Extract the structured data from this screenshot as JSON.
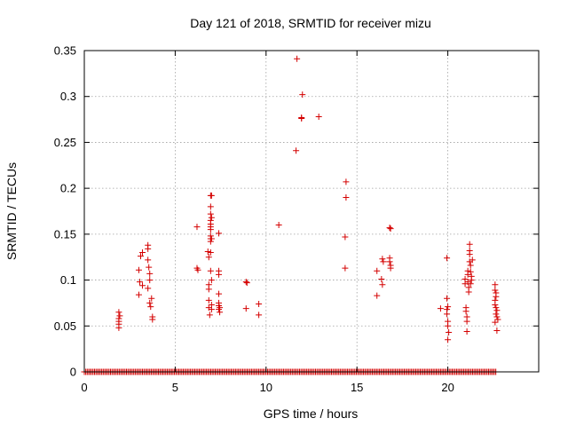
{
  "chart_data": {
    "type": "scatter",
    "title": "Day 121 of 2018, SRMTID for receiver mizu",
    "xlabel": "GPS time / hours",
    "ylabel": "SRMTID / TECUs",
    "xlim": [
      0,
      25
    ],
    "ylim": [
      0,
      0.35
    ],
    "grid": true,
    "marker": "plus",
    "color": "#d40000",
    "x_ticks": [
      0,
      5,
      10,
      15,
      20
    ],
    "x_tick_labels": [
      "0",
      "5",
      "10",
      "15",
      "20"
    ],
    "y_ticks": [
      0,
      0.05,
      0.1,
      0.15,
      0.2,
      0.25,
      0.3,
      0.35
    ],
    "y_tick_labels": [
      "0",
      "0.05",
      "0.1",
      "0.15",
      "0.2",
      "0.25",
      "0.3",
      "0.35"
    ],
    "baseline_zero_range": [
      0,
      22.7
    ],
    "baseline_zero_step": 0.08,
    "points": [
      [
        1.9,
        0.065
      ],
      [
        1.9,
        0.058
      ],
      [
        1.9,
        0.055
      ],
      [
        1.9,
        0.052
      ],
      [
        1.9,
        0.048
      ],
      [
        1.95,
        0.061
      ],
      [
        3.0,
        0.111
      ],
      [
        3.0,
        0.084
      ],
      [
        3.05,
        0.098
      ],
      [
        3.1,
        0.126
      ],
      [
        3.2,
        0.13
      ],
      [
        3.2,
        0.094
      ],
      [
        3.5,
        0.138
      ],
      [
        3.5,
        0.134
      ],
      [
        3.5,
        0.122
      ],
      [
        3.55,
        0.114
      ],
      [
        3.5,
        0.091
      ],
      [
        3.6,
        0.107
      ],
      [
        3.6,
        0.1
      ],
      [
        3.6,
        0.075
      ],
      [
        3.65,
        0.071
      ],
      [
        3.7,
        0.08
      ],
      [
        3.75,
        0.06
      ],
      [
        3.75,
        0.057
      ],
      [
        6.2,
        0.158
      ],
      [
        6.2,
        0.113
      ],
      [
        6.25,
        0.111
      ],
      [
        6.8,
        0.131
      ],
      [
        6.85,
        0.125
      ],
      [
        6.85,
        0.095
      ],
      [
        6.85,
        0.09
      ],
      [
        6.85,
        0.078
      ],
      [
        6.85,
        0.07
      ],
      [
        6.9,
        0.062
      ],
      [
        6.95,
        0.192
      ],
      [
        6.95,
        0.18
      ],
      [
        6.95,
        0.172
      ],
      [
        6.95,
        0.165
      ],
      [
        6.95,
        0.161
      ],
      [
        6.95,
        0.158
      ],
      [
        6.95,
        0.155
      ],
      [
        6.95,
        0.148
      ],
      [
        6.95,
        0.145
      ],
      [
        6.95,
        0.142
      ],
      [
        6.95,
        0.13
      ],
      [
        6.95,
        0.11
      ],
      [
        7.0,
        0.192
      ],
      [
        7.0,
        0.168
      ],
      [
        7.0,
        0.145
      ],
      [
        7.0,
        0.1
      ],
      [
        7.0,
        0.073
      ],
      [
        7.0,
        0.068
      ],
      [
        7.4,
        0.151
      ],
      [
        7.4,
        0.11
      ],
      [
        7.4,
        0.106
      ],
      [
        7.4,
        0.085
      ],
      [
        7.4,
        0.075
      ],
      [
        7.4,
        0.072
      ],
      [
        7.4,
        0.068
      ],
      [
        7.45,
        0.065
      ],
      [
        7.45,
        0.07
      ],
      [
        8.9,
        0.098
      ],
      [
        8.95,
        0.097
      ],
      [
        8.9,
        0.069
      ],
      [
        9.6,
        0.074
      ],
      [
        9.6,
        0.062
      ],
      [
        10.7,
        0.16
      ],
      [
        11.7,
        0.341
      ],
      [
        11.65,
        0.241
      ],
      [
        12.0,
        0.302
      ],
      [
        11.95,
        0.277
      ],
      [
        11.95,
        0.276
      ],
      [
        12.9,
        0.278
      ],
      [
        14.4,
        0.207
      ],
      [
        14.4,
        0.19
      ],
      [
        14.35,
        0.147
      ],
      [
        14.35,
        0.113
      ],
      [
        16.1,
        0.11
      ],
      [
        16.1,
        0.083
      ],
      [
        16.4,
        0.123
      ],
      [
        16.45,
        0.12
      ],
      [
        16.35,
        0.101
      ],
      [
        16.4,
        0.095
      ],
      [
        16.8,
        0.157
      ],
      [
        16.85,
        0.156
      ],
      [
        16.8,
        0.124
      ],
      [
        16.8,
        0.12
      ],
      [
        16.85,
        0.116
      ],
      [
        16.85,
        0.113
      ],
      [
        19.6,
        0.069
      ],
      [
        19.95,
        0.124
      ],
      [
        19.95,
        0.08
      ],
      [
        20.0,
        0.071
      ],
      [
        19.95,
        0.068
      ],
      [
        19.95,
        0.063
      ],
      [
        20.0,
        0.055
      ],
      [
        20.0,
        0.05
      ],
      [
        20.05,
        0.043
      ],
      [
        20.0,
        0.035
      ],
      [
        20.95,
        0.101
      ],
      [
        20.95,
        0.096
      ],
      [
        21.0,
        0.07
      ],
      [
        21.0,
        0.066
      ],
      [
        21.05,
        0.06
      ],
      [
        21.05,
        0.055
      ],
      [
        21.05,
        0.044
      ],
      [
        21.1,
        0.11
      ],
      [
        21.1,
        0.106
      ],
      [
        21.1,
        0.098
      ],
      [
        21.15,
        0.092
      ],
      [
        21.15,
        0.087
      ],
      [
        21.2,
        0.139
      ],
      [
        21.2,
        0.132
      ],
      [
        21.2,
        0.128
      ],
      [
        21.2,
        0.12
      ],
      [
        21.25,
        0.116
      ],
      [
        21.25,
        0.109
      ],
      [
        21.3,
        0.104
      ],
      [
        21.3,
        0.1
      ],
      [
        21.25,
        0.096
      ],
      [
        21.35,
        0.122
      ],
      [
        22.6,
        0.095
      ],
      [
        22.6,
        0.089
      ],
      [
        22.65,
        0.086
      ],
      [
        22.65,
        0.082
      ],
      [
        22.6,
        0.078
      ],
      [
        22.6,
        0.073
      ],
      [
        22.65,
        0.07
      ],
      [
        22.7,
        0.067
      ],
      [
        22.65,
        0.063
      ],
      [
        22.7,
        0.06
      ],
      [
        22.75,
        0.057
      ],
      [
        22.6,
        0.054
      ],
      [
        22.7,
        0.045
      ]
    ]
  }
}
